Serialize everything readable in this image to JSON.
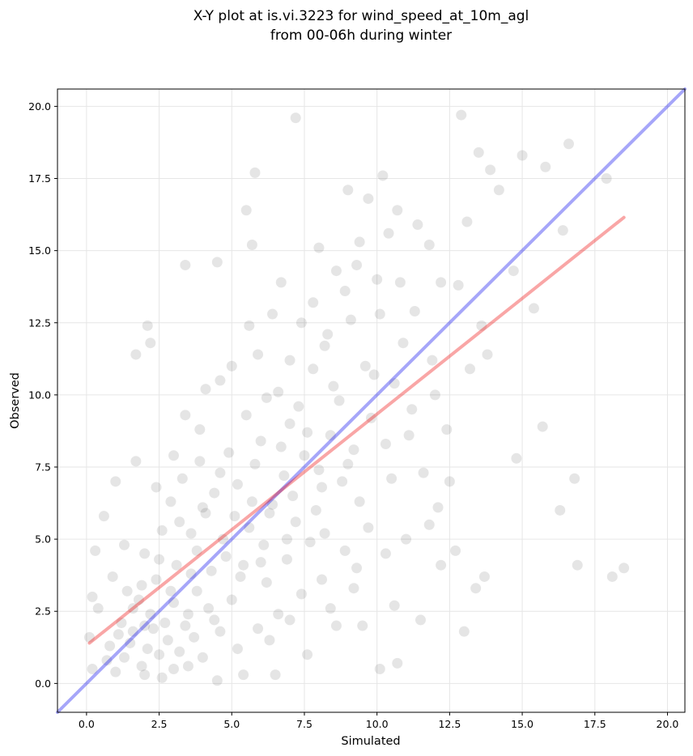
{
  "chart_data": {
    "type": "scatter",
    "title_lines": [
      "X-Y plot at is.vi.3223 for wind_speed_at_10m_agl",
      "from 00-06h during winter"
    ],
    "xlabel": "Simulated",
    "ylabel": "Observed",
    "xlim": [
      -1.0,
      20.6
    ],
    "ylim": [
      -1.0,
      20.6
    ],
    "x_ticks": [
      0.0,
      2.5,
      5.0,
      7.5,
      10.0,
      12.5,
      15.0,
      17.5,
      20.0
    ],
    "y_ticks": [
      0.0,
      2.5,
      5.0,
      7.5,
      10.0,
      12.5,
      15.0,
      17.5,
      20.0
    ],
    "tick_labels": {
      "x": [
        "0.0",
        "2.5",
        "5.0",
        "7.5",
        "10.0",
        "12.5",
        "15.0",
        "17.5",
        "20.0"
      ],
      "y": [
        "0.0",
        "2.5",
        "5.0",
        "7.5",
        "10.0",
        "12.5",
        "15.0",
        "17.5",
        "20.0"
      ]
    },
    "grid": true,
    "colors": {
      "points": "#000000",
      "identity_line": "#0000ee",
      "fit_line": "#ee0000",
      "grid": "#e6e6e6"
    },
    "lines": [
      {
        "kind": "identity",
        "x": [
          -1.0,
          20.6
        ],
        "y": [
          -1.0,
          20.6
        ]
      },
      {
        "kind": "fit",
        "x": [
          0.1,
          18.5
        ],
        "y": [
          1.4,
          16.15
        ]
      }
    ],
    "points": [
      [
        1.9,
        0.6
      ],
      [
        2.5,
        1.0
      ],
      [
        2.1,
        1.2
      ],
      [
        1.3,
        0.9
      ],
      [
        3.0,
        0.5
      ],
      [
        2.8,
        1.5
      ],
      [
        1.6,
        1.8
      ],
      [
        2.2,
        2.4
      ],
      [
        3.4,
        2.0
      ],
      [
        2.6,
        0.2
      ],
      [
        1.0,
        0.4
      ],
      [
        0.8,
        1.3
      ],
      [
        1.8,
        2.9
      ],
      [
        3.8,
        3.2
      ],
      [
        2.4,
        3.6
      ],
      [
        4.2,
        2.6
      ],
      [
        3.1,
        4.1
      ],
      [
        2.0,
        4.5
      ],
      [
        4.6,
        1.8
      ],
      [
        3.6,
        5.2
      ],
      [
        4.8,
        4.4
      ],
      [
        5.3,
        3.7
      ],
      [
        4.1,
        5.9
      ],
      [
        2.9,
        6.3
      ],
      [
        5.6,
        5.4
      ],
      [
        4.4,
        6.6
      ],
      [
        3.3,
        7.1
      ],
      [
        6.1,
        4.8
      ],
      [
        5.2,
        6.9
      ],
      [
        6.4,
        6.2
      ],
      [
        5.8,
        7.6
      ],
      [
        4.9,
        8.0
      ],
      [
        6.8,
        7.2
      ],
      [
        7.2,
        5.6
      ],
      [
        6.0,
        8.4
      ],
      [
        3.9,
        8.8
      ],
      [
        7.5,
        7.9
      ],
      [
        5.5,
        9.3
      ],
      [
        7.0,
        9.0
      ],
      [
        8.1,
        6.8
      ],
      [
        8.4,
        8.6
      ],
      [
        6.6,
        10.1
      ],
      [
        4.6,
        10.5
      ],
      [
        7.8,
        10.9
      ],
      [
        9.0,
        7.6
      ],
      [
        8.7,
        9.8
      ],
      [
        9.4,
        6.3
      ],
      [
        5.9,
        11.4
      ],
      [
        8.2,
        11.7
      ],
      [
        9.8,
        9.2
      ],
      [
        10.3,
        8.3
      ],
      [
        7.4,
        12.5
      ],
      [
        9.6,
        11.0
      ],
      [
        10.6,
        10.4
      ],
      [
        10.1,
        12.8
      ],
      [
        11.2,
        9.5
      ],
      [
        11.6,
        7.3
      ],
      [
        8.9,
        13.6
      ],
      [
        10.8,
        13.9
      ],
      [
        9.3,
        14.5
      ],
      [
        11.9,
        11.2
      ],
      [
        12.4,
        8.8
      ],
      [
        10.4,
        15.6
      ],
      [
        9.7,
        16.8
      ],
      [
        12.8,
        13.8
      ],
      [
        11.4,
        15.9
      ],
      [
        13.2,
        10.9
      ],
      [
        10.2,
        17.6
      ],
      [
        12.1,
        6.1
      ],
      [
        13.6,
        12.4
      ],
      [
        13.1,
        16.0
      ],
      [
        14.2,
        17.1
      ],
      [
        13.5,
        18.4
      ],
      [
        12.9,
        19.7
      ],
      [
        13.9,
        17.8
      ],
      [
        15.0,
        18.3
      ],
      [
        15.8,
        17.9
      ],
      [
        16.6,
        18.7
      ],
      [
        17.9,
        17.5
      ],
      [
        14.7,
        14.3
      ],
      [
        15.4,
        13.0
      ],
      [
        16.4,
        15.7
      ],
      [
        15.7,
        8.9
      ],
      [
        14.8,
        7.8
      ],
      [
        16.8,
        7.1
      ],
      [
        16.3,
        6.0
      ],
      [
        16.9,
        4.1
      ],
      [
        18.1,
        3.7
      ],
      [
        18.5,
        4.0
      ],
      [
        13.7,
        3.7
      ],
      [
        13.0,
        1.8
      ],
      [
        13.4,
        3.3
      ],
      [
        12.7,
        4.6
      ],
      [
        11.5,
        2.2
      ],
      [
        10.7,
        0.7
      ],
      [
        10.1,
        0.5
      ],
      [
        9.5,
        2.0
      ],
      [
        8.6,
        2.0
      ],
      [
        7.6,
        1.0
      ],
      [
        6.5,
        0.3
      ],
      [
        5.4,
        0.3
      ],
      [
        4.5,
        0.1
      ],
      [
        3.5,
        0.6
      ],
      [
        7.2,
        19.6
      ],
      [
        5.5,
        16.4
      ],
      [
        5.8,
        17.7
      ],
      [
        5.7,
        15.2
      ],
      [
        4.5,
        14.6
      ],
      [
        3.4,
        14.5
      ],
      [
        2.1,
        12.4
      ],
      [
        1.7,
        11.4
      ],
      [
        2.2,
        11.8
      ],
      [
        1.0,
        7.0
      ],
      [
        1.7,
        7.7
      ],
      [
        0.6,
        5.8
      ],
      [
        0.3,
        4.6
      ],
      [
        0.2,
        3.0
      ],
      [
        0.1,
        1.6
      ],
      [
        0.2,
        0.5
      ],
      [
        0.4,
        2.6
      ],
      [
        1.4,
        3.2
      ],
      [
        2.7,
        2.1
      ],
      [
        3.2,
        1.1
      ],
      [
        4.0,
        0.9
      ],
      [
        1.2,
        2.1
      ],
      [
        2.0,
        0.3
      ],
      [
        0.7,
        0.8
      ],
      [
        1.5,
        1.4
      ],
      [
        2.3,
        1.9
      ],
      [
        3.7,
        1.6
      ],
      [
        3.0,
        2.8
      ],
      [
        2.5,
        4.3
      ],
      [
        3.6,
        3.8
      ],
      [
        4.3,
        3.9
      ],
      [
        1.9,
        3.4
      ],
      [
        5.0,
        2.9
      ],
      [
        4.7,
        5.0
      ],
      [
        3.8,
        4.6
      ],
      [
        2.6,
        5.3
      ],
      [
        5.4,
        4.1
      ],
      [
        6.2,
        3.5
      ],
      [
        6.9,
        4.3
      ],
      [
        5.1,
        5.8
      ],
      [
        4.0,
        6.1
      ],
      [
        3.2,
        5.6
      ],
      [
        6.3,
        5.9
      ],
      [
        7.1,
        6.5
      ],
      [
        5.7,
        6.3
      ],
      [
        4.6,
        7.3
      ],
      [
        3.9,
        7.7
      ],
      [
        6.7,
        8.2
      ],
      [
        7.6,
        8.7
      ],
      [
        8.0,
        7.4
      ],
      [
        8.8,
        7.0
      ],
      [
        9.2,
        8.1
      ],
      [
        7.3,
        9.6
      ],
      [
        6.2,
        9.9
      ],
      [
        8.5,
        10.3
      ],
      [
        9.9,
        10.7
      ],
      [
        8.3,
        12.1
      ],
      [
        7.0,
        11.2
      ],
      [
        6.4,
        12.8
      ],
      [
        9.1,
        12.6
      ],
      [
        10.0,
        14.0
      ],
      [
        8.6,
        14.3
      ],
      [
        10.9,
        11.8
      ],
      [
        11.3,
        12.9
      ],
      [
        12.0,
        10.0
      ],
      [
        11.1,
        8.6
      ],
      [
        10.5,
        7.1
      ],
      [
        9.7,
        5.4
      ],
      [
        8.9,
        4.6
      ],
      [
        8.1,
        3.6
      ],
      [
        7.7,
        4.9
      ],
      [
        7.4,
        3.1
      ],
      [
        6.6,
        2.4
      ],
      [
        5.9,
        1.9
      ],
      [
        5.2,
        1.2
      ],
      [
        6.3,
        1.5
      ],
      [
        7.0,
        2.2
      ],
      [
        8.4,
        2.6
      ],
      [
        9.2,
        3.3
      ],
      [
        10.3,
        4.5
      ],
      [
        11.0,
        5.0
      ],
      [
        11.8,
        5.5
      ],
      [
        12.5,
        7.0
      ],
      [
        12.2,
        4.1
      ],
      [
        10.6,
        2.7
      ],
      [
        9.3,
        4.0
      ],
      [
        8.2,
        5.2
      ],
      [
        7.9,
        6.0
      ],
      [
        6.9,
        5.0
      ],
      [
        6.0,
        4.2
      ],
      [
        4.4,
        2.2
      ],
      [
        3.5,
        2.4
      ],
      [
        2.9,
        3.2
      ],
      [
        2.0,
        2.0
      ],
      [
        1.6,
        2.6
      ],
      [
        1.1,
        1.7
      ],
      [
        0.9,
        3.7
      ],
      [
        1.3,
        4.8
      ],
      [
        2.4,
        6.8
      ],
      [
        3.0,
        7.9
      ],
      [
        3.4,
        9.3
      ],
      [
        4.1,
        10.2
      ],
      [
        5.0,
        11.0
      ],
      [
        5.6,
        12.4
      ],
      [
        6.7,
        13.9
      ],
      [
        7.8,
        13.2
      ],
      [
        8.0,
        15.1
      ],
      [
        9.4,
        15.3
      ],
      [
        9.0,
        17.1
      ],
      [
        10.7,
        16.4
      ],
      [
        11.8,
        15.2
      ],
      [
        12.2,
        13.9
      ],
      [
        13.8,
        11.4
      ]
    ]
  }
}
